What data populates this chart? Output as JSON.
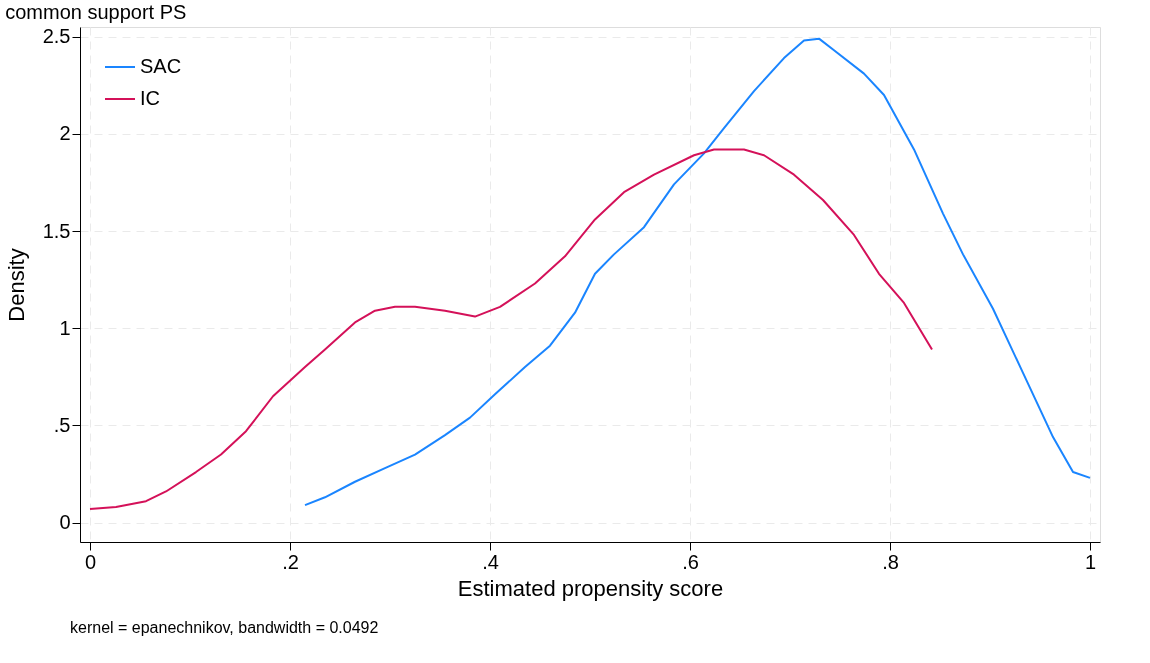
{
  "chart_data": {
    "type": "line",
    "title": "common support PS",
    "xlabel": "Estimated propensity score",
    "ylabel": "Density",
    "annotations": [
      "kernel = epanechnikov, bandwidth = 0.0492"
    ],
    "xlim": [
      -0.01,
      1.01
    ],
    "ylim": [
      -0.1,
      2.55
    ],
    "xticks": [
      0,
      {
        "value": 0.2,
        "label": ".2"
      },
      {
        "value": 0.4,
        "label": ".4"
      },
      {
        "value": 0.6,
        "label": ".6"
      },
      {
        "value": 0.8,
        "label": ".8"
      },
      1
    ],
    "yticks": [
      0,
      {
        "value": 0.5,
        "label": ".5"
      },
      1,
      1.5,
      2,
      2.5
    ],
    "grid": true,
    "legend": "top left",
    "line_style": "solid",
    "series": [
      {
        "name": "SAC",
        "color": "#1a85ff",
        "x": [
          0.215,
          0.235,
          0.265,
          0.295,
          0.325,
          0.355,
          0.38,
          0.405,
          0.435,
          0.46,
          0.485,
          0.505,
          0.524,
          0.554,
          0.584,
          0.614,
          0.634,
          0.664,
          0.694,
          0.714,
          0.729,
          0.744,
          0.774,
          0.794,
          0.824,
          0.853,
          0.873,
          0.903,
          0.933,
          0.963,
          0.983,
          1.0
        ],
        "values": [
          0.09,
          0.13,
          0.21,
          0.28,
          0.35,
          0.45,
          0.54,
          0.66,
          0.8,
          0.91,
          1.08,
          1.28,
          1.38,
          1.52,
          1.74,
          1.9,
          2.03,
          2.22,
          2.39,
          2.48,
          2.49,
          2.43,
          2.31,
          2.2,
          1.92,
          1.59,
          1.38,
          1.1,
          0.77,
          0.44,
          0.26,
          0.23
        ]
      },
      {
        "name": "IC",
        "color": "#d41159",
        "x": [
          0,
          0.026,
          0.056,
          0.076,
          0.106,
          0.131,
          0.156,
          0.183,
          0.215,
          0.235,
          0.265,
          0.285,
          0.305,
          0.325,
          0.355,
          0.385,
          0.41,
          0.445,
          0.475,
          0.505,
          0.534,
          0.564,
          0.604,
          0.624,
          0.654,
          0.674,
          0.704,
          0.733,
          0.764,
          0.789,
          0.814,
          0.842
        ],
        "values": [
          0.07,
          0.08,
          0.11,
          0.16,
          0.26,
          0.35,
          0.47,
          0.65,
          0.8,
          0.89,
          1.03,
          1.09,
          1.11,
          1.11,
          1.09,
          1.06,
          1.11,
          1.23,
          1.37,
          1.56,
          1.7,
          1.79,
          1.89,
          1.92,
          1.92,
          1.89,
          1.79,
          1.66,
          1.48,
          1.28,
          1.13,
          0.89
        ]
      }
    ]
  }
}
